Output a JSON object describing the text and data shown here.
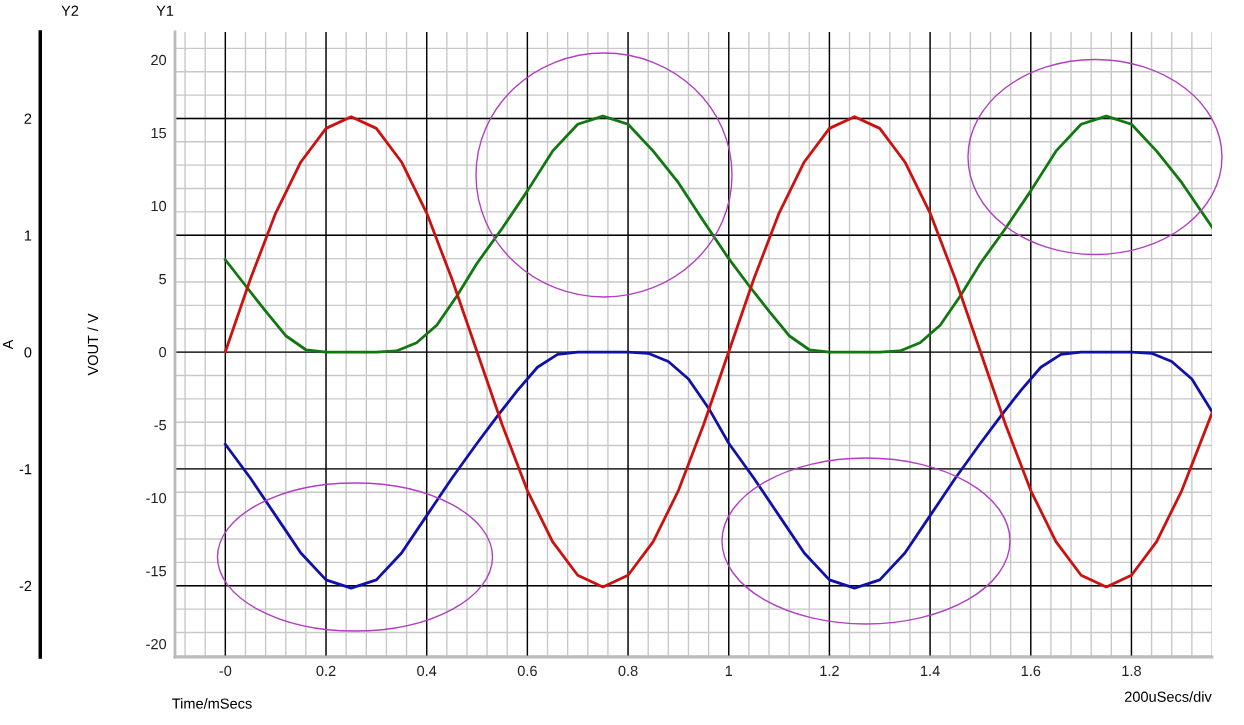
{
  "chart_data": {
    "type": "line",
    "xlabel": "Time/mSecs",
    "ylabel": "VOUT / V",
    "y2label": "A",
    "annotations": [
      "Y2",
      "Y1",
      "200uSecs/div"
    ],
    "xlim": [
      -0.1,
      1.96
    ],
    "xticks": [
      {
        "value": 0,
        "label": "-0"
      },
      0.2,
      0.4,
      0.6,
      0.8,
      1,
      1.2,
      1.4,
      1.6,
      1.8
    ],
    "ylim": [
      -20.9,
      21.9
    ],
    "yticks": [
      -20,
      -15,
      -10,
      -5,
      0,
      5,
      10,
      15,
      20
    ],
    "y2lim": [
      -2.61,
      2.74
    ],
    "y2ticks": [
      -2,
      -1,
      0,
      1,
      2
    ],
    "grid": true,
    "marker": "none",
    "line_style": "solid",
    "series": [
      {
        "color": "#cc1111",
        "x": [
          0,
          0.05,
          0.1,
          0.15,
          0.2,
          0.25,
          0.3,
          0.35,
          0.4,
          0.45,
          0.5,
          0.55,
          0.6,
          0.65,
          0.7,
          0.75,
          0.8,
          0.85,
          0.9,
          0.95,
          1.0,
          1.05,
          1.1,
          1.15,
          1.2,
          1.25,
          1.3,
          1.35,
          1.4,
          1.45,
          1.5,
          1.55,
          1.6,
          1.65,
          1.7,
          1.75,
          1.8,
          1.85,
          1.9,
          1.96
        ],
        "values": [
          0,
          5.0,
          9.5,
          13.0,
          15.3,
          16.1,
          15.3,
          13.0,
          9.5,
          5.0,
          0,
          -5.0,
          -9.5,
          -13.0,
          -15.3,
          -16.1,
          -15.3,
          -13.0,
          -9.5,
          -5.0,
          0,
          5.0,
          9.5,
          13.0,
          15.3,
          16.1,
          15.3,
          13.0,
          9.5,
          5.0,
          0,
          -5.0,
          -9.5,
          -13.0,
          -15.3,
          -16.1,
          -15.3,
          -13.0,
          -9.5,
          -4.2
        ]
      },
      {
        "color": "#117711",
        "axis": "y2",
        "x": [
          0,
          0.04,
          0.08,
          0.12,
          0.16,
          0.2,
          0.3,
          0.34,
          0.38,
          0.42,
          0.46,
          0.5,
          0.55,
          0.6,
          0.65,
          0.7,
          0.75,
          0.8,
          0.85,
          0.9,
          0.95,
          1.0,
          1.04,
          1.08,
          1.12,
          1.16,
          1.2,
          1.3,
          1.34,
          1.38,
          1.42,
          1.46,
          1.5,
          1.55,
          1.6,
          1.65,
          1.7,
          1.75,
          1.8,
          1.85,
          1.9,
          1.96
        ],
        "values": [
          0.79,
          0.57,
          0.35,
          0.14,
          0.02,
          0,
          0,
          0.01,
          0.08,
          0.23,
          0.48,
          0.76,
          1.06,
          1.38,
          1.72,
          1.95,
          2.02,
          1.95,
          1.72,
          1.45,
          1.12,
          0.8,
          0.57,
          0.35,
          0.14,
          0.02,
          0,
          0,
          0.01,
          0.08,
          0.23,
          0.48,
          0.76,
          1.06,
          1.38,
          1.72,
          1.95,
          2.02,
          1.95,
          1.72,
          1.45,
          1.07
        ]
      },
      {
        "color": "#1111aa",
        "axis": "y2",
        "x": [
          0,
          0.05,
          0.1,
          0.15,
          0.2,
          0.25,
          0.3,
          0.35,
          0.4,
          0.45,
          0.5,
          0.54,
          0.58,
          0.62,
          0.66,
          0.7,
          0.8,
          0.84,
          0.88,
          0.92,
          0.96,
          1.0,
          1.05,
          1.1,
          1.15,
          1.2,
          1.25,
          1.3,
          1.35,
          1.4,
          1.45,
          1.5,
          1.54,
          1.58,
          1.62,
          1.66,
          1.7,
          1.8,
          1.84,
          1.88,
          1.92,
          1.96
        ],
        "values": [
          -0.79,
          -1.08,
          -1.4,
          -1.72,
          -1.95,
          -2.02,
          -1.95,
          -1.72,
          -1.4,
          -1.08,
          -0.78,
          -0.55,
          -0.33,
          -0.13,
          -0.02,
          0,
          0,
          -0.01,
          -0.08,
          -0.23,
          -0.48,
          -0.78,
          -1.08,
          -1.4,
          -1.72,
          -1.95,
          -2.02,
          -1.95,
          -1.72,
          -1.4,
          -1.08,
          -0.78,
          -0.55,
          -0.33,
          -0.13,
          -0.02,
          0,
          0,
          -0.01,
          -0.08,
          -0.23,
          -0.51
        ]
      }
    ]
  }
}
